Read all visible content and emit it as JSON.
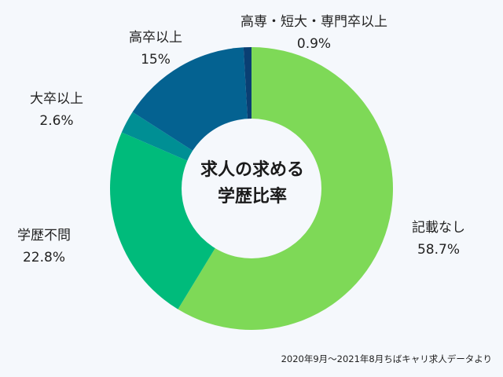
{
  "chart_data": {
    "type": "pie",
    "subtype": "donut",
    "title": "求人の求める学歴比率",
    "title_lines": [
      "求人の求める",
      "学歴比率"
    ],
    "unit": "%",
    "start_angle": "top, clockwise",
    "categories": [
      "記載なし",
      "学歴不問",
      "大卒以上",
      "高卒以上",
      "高専・短大・専門卒以上"
    ],
    "values": [
      58.7,
      22.8,
      2.6,
      15,
      0.9
    ],
    "value_labels": [
      "58.7%",
      "22.8%",
      "2.6%",
      "15%",
      "0.9%"
    ],
    "colors": [
      "#7ED957",
      "#00BB7B",
      "#008F94",
      "#046291",
      "#0A3F73"
    ],
    "legend": "none (direct labels)",
    "source_note": "2020年9月〜2021年8月ちばキャリ求人データより"
  },
  "labels": [
    {
      "name": "記載なし",
      "value": "58.7%"
    },
    {
      "name": "学歴不問",
      "value": "22.8%"
    },
    {
      "name": "大卒以上",
      "value": "2.6%"
    },
    {
      "name": "高卒以上",
      "value": "15%"
    },
    {
      "name": "高専・短大・専門卒以上",
      "value": "0.9%"
    }
  ],
  "colors": {
    "background": "#F5F8FC",
    "hole": "#F5F8FC",
    "text": "#222222"
  }
}
